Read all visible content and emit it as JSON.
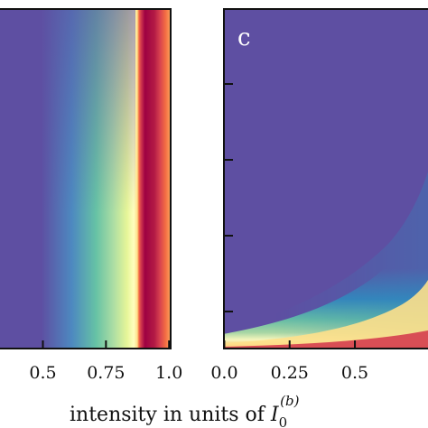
{
  "chart_data": [
    {
      "type": "heatmap",
      "panel_label": "",
      "x_tick_labels": [
        "0.5",
        "0.75",
        "1.0"
      ],
      "x_ticks": [
        0.5,
        0.75,
        1.0
      ],
      "xlim": [
        0.33,
        1.01
      ],
      "colormap": "Spectral_r",
      "structure": "vertical band near x = 0.9 to 0.98 (high values), broad diffuse rise from x = 0.6 toward the band"
    },
    {
      "type": "heatmap",
      "panel_label": "c",
      "x_tick_labels": [
        "0.0",
        "0.25",
        "0.5"
      ],
      "x_ticks": [
        0.0,
        0.25,
        0.5
      ],
      "xlim": [
        -0.005,
        0.78
      ],
      "colormap": "Spectral_r",
      "structure": "high values concentrated along the bottom edge, curving upward toward larger x"
    }
  ],
  "xlabel": {
    "prefix": "intensity in units of ",
    "symbol": "I",
    "subscript": "0",
    "superscript": "(b)"
  },
  "colors": {
    "low": "#5e4fa2",
    "high": "#9e0142",
    "axis": "#111111"
  }
}
